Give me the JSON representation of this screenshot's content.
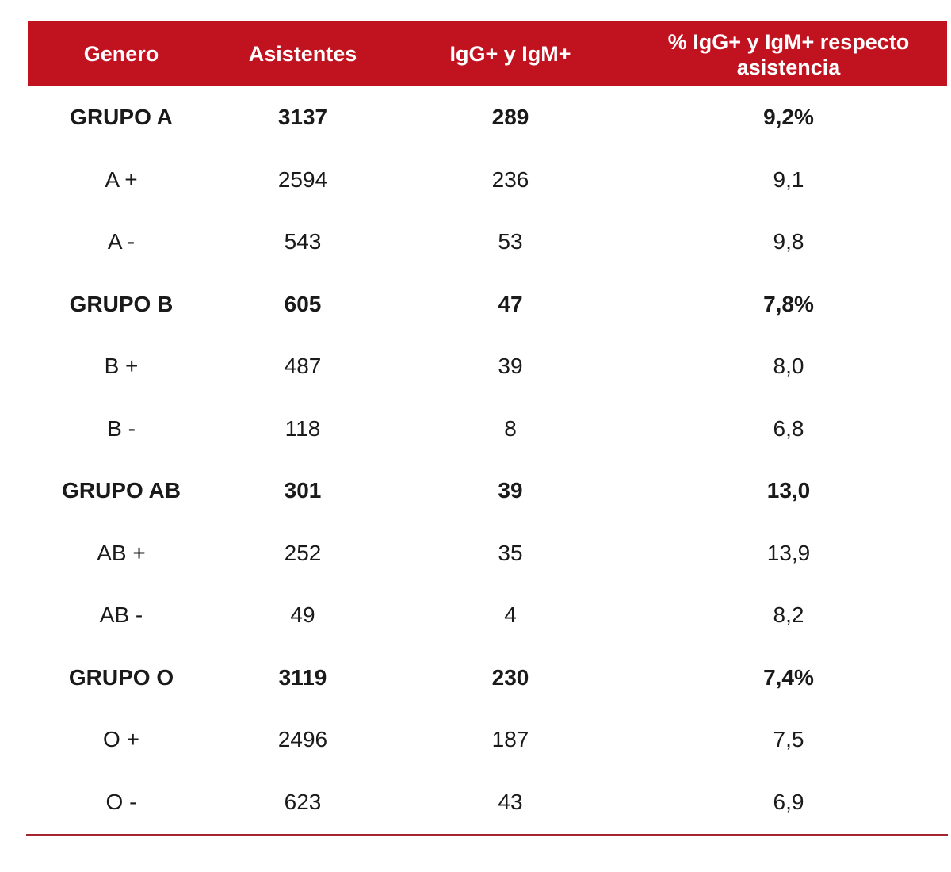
{
  "table": {
    "headers": {
      "genero": "Genero",
      "asistentes": "Asistentes",
      "igg_igm": "IgG+ y IgM+",
      "pct_line1": "% IgG+ y IgM+ respecto",
      "pct_line2": "asistencia"
    },
    "rows": [
      {
        "genero": "GRUPO A",
        "asistentes": "3137",
        "igg_igm": "289",
        "pct": "9,2%",
        "group": true
      },
      {
        "genero": "A +",
        "asistentes": "2594",
        "igg_igm": "236",
        "pct": "9,1",
        "group": false
      },
      {
        "genero": "A -",
        "asistentes": "543",
        "igg_igm": "53",
        "pct": "9,8",
        "group": false
      },
      {
        "genero": "GRUPO B",
        "asistentes": "605",
        "igg_igm": "47",
        "pct": "7,8%",
        "group": true
      },
      {
        "genero": "B +",
        "asistentes": "487",
        "igg_igm": "39",
        "pct": "8,0",
        "group": false
      },
      {
        "genero": "B -",
        "asistentes": "118",
        "igg_igm": "8",
        "pct": "6,8",
        "group": false
      },
      {
        "genero": "GRUPO AB",
        "asistentes": "301",
        "igg_igm": "39",
        "pct": "13,0",
        "group": true
      },
      {
        "genero": "AB +",
        "asistentes": "252",
        "igg_igm": "35",
        "pct": "13,9",
        "group": false
      },
      {
        "genero": "AB -",
        "asistentes": "49",
        "igg_igm": "4",
        "pct": "8,2",
        "group": false
      },
      {
        "genero": "GRUPO O",
        "asistentes": "3119",
        "igg_igm": "230",
        "pct": "7,4%",
        "group": true
      },
      {
        "genero": "O +",
        "asistentes": "2496",
        "igg_igm": "187",
        "pct": "7,5",
        "group": false
      },
      {
        "genero": "O -",
        "asistentes": "623",
        "igg_igm": "43",
        "pct": "6,9",
        "group": false
      }
    ]
  },
  "colors": {
    "header_bg": "#c1121f",
    "header_text": "#ffffff",
    "rule": "#a3262e"
  }
}
